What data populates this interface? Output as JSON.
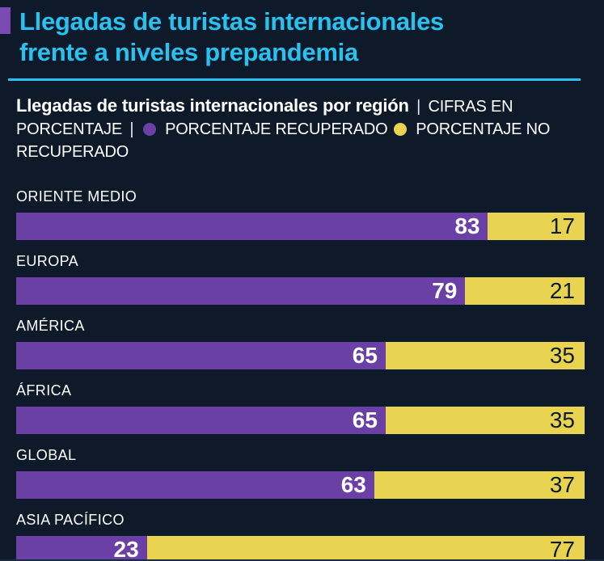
{
  "colors": {
    "background": "#0e1a29",
    "accent_cyan": "#29c1f0",
    "accent_purple": "#7a4cb3",
    "bar_purple": "#6a3fa6",
    "bar_yellow": "#e9d452",
    "dark_number": "#101b2b",
    "white": "#ffffff"
  },
  "header": {
    "title_line1": "Llegadas de turistas internacionales",
    "title_line2": "frente a niveles prepandemia"
  },
  "subtitle": {
    "bold": "Llegadas de turistas internacionales por región",
    "separator": "|",
    "line1_rest": "CIFRAS EN",
    "line2_prefix": "PORCENTAJE",
    "legend": [
      {
        "label": "PORCENTAJE RECUPERADO",
        "color": "#6a3fa6"
      },
      {
        "label": "PORCENTAJE NO RECUPERADO",
        "color": "#e9d452"
      }
    ]
  },
  "chart_data": {
    "type": "bar",
    "orientation": "horizontal",
    "stacked": true,
    "unit": "percent",
    "xlim": [
      0,
      100
    ],
    "title": "Llegadas de turistas internacionales frente a niveles prepandemia",
    "subtitle": "Llegadas de turistas internacionales por región | CIFRAS EN PORCENTAJE",
    "legend_position": "top",
    "grid": false,
    "categories": [
      "ORIENTE MEDIO",
      "EUROPA",
      "AMÉRICA",
      "ÁFRICA",
      "GLOBAL",
      "ASIA PACÍFICO"
    ],
    "series": [
      {
        "name": "PORCENTAJE RECUPERADO",
        "color": "#6a3fa6",
        "values": [
          83,
          79,
          65,
          65,
          63,
          23
        ]
      },
      {
        "name": "PORCENTAJE NO RECUPERADO",
        "color": "#e9d452",
        "values": [
          17,
          21,
          35,
          35,
          37,
          77
        ]
      }
    ]
  }
}
